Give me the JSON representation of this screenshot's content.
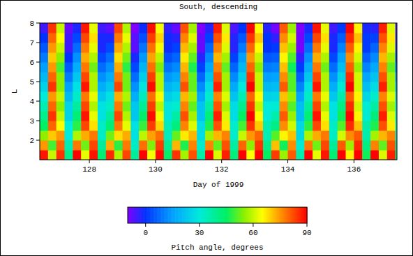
{
  "chart_data": {
    "type": "heatmap",
    "title": "South, descending",
    "x_label": "Day of 1999",
    "y_label": "L",
    "xlim": [
      126.5,
      137.3
    ],
    "ylim": [
      1,
      8
    ],
    "xticks": [
      128,
      130,
      132,
      134,
      136
    ],
    "yticks": [
      2,
      3,
      4,
      5,
      6,
      7,
      8
    ],
    "colorbar_label": "Pitch angle, degrees",
    "colorbar_range": [
      -10,
      90
    ],
    "colorbar_ticks": [
      0,
      30,
      60,
      90
    ],
    "x": [
      126.625,
      126.875,
      127.125,
      127.375,
      127.625,
      127.875,
      128.125,
      128.375,
      128.625,
      128.875,
      129.125,
      129.375,
      129.625,
      129.875,
      130.125,
      130.375,
      130.625,
      130.875,
      131.125,
      131.375,
      131.625,
      131.875,
      132.125,
      132.375,
      132.625,
      132.875,
      133.125,
      133.375,
      133.625,
      133.875,
      134.125,
      134.375,
      134.625,
      134.875,
      135.125,
      135.375,
      135.625,
      135.875,
      136.125,
      136.375,
      136.625,
      136.875,
      137.125,
      137.375
    ],
    "y": [
      1.25,
      1.75,
      2.25,
      2.75,
      3.25,
      3.75,
      4.25,
      4.75,
      5.25,
      5.75,
      6.25,
      6.75,
      7.25,
      7.75
    ],
    "values": [
      [
        88,
        60,
        85,
        40,
        90,
        63,
        88,
        43,
        86,
        58,
        83,
        38,
        90,
        64,
        89,
        44,
        85,
        57,
        82,
        37,
        90,
        62,
        87,
        42,
        90,
        65,
        90,
        45,
        84,
        56,
        81,
        36,
        90,
        63,
        88,
        43,
        90,
        66,
        90,
        46,
        90,
        62,
        87,
        42
      ],
      [
        75,
        50,
        80,
        35,
        78,
        53,
        83,
        38,
        73,
        48,
        78,
        33,
        79,
        54,
        84,
        39,
        72,
        47,
        77,
        32,
        77,
        52,
        82,
        37,
        80,
        55,
        85,
        40,
        71,
        46,
        76,
        31,
        78,
        53,
        83,
        38,
        81,
        56,
        86,
        41,
        77,
        52,
        82,
        37
      ],
      [
        55,
        70,
        75,
        30,
        58,
        73,
        78,
        33,
        53,
        68,
        73,
        28,
        59,
        74,
        79,
        34,
        52,
        67,
        72,
        27,
        57,
        72,
        77,
        32,
        60,
        75,
        80,
        35,
        51,
        66,
        71,
        26,
        58,
        73,
        78,
        33,
        61,
        76,
        81,
        36,
        57,
        72,
        77,
        32
      ],
      [
        45,
        80,
        65,
        30,
        48,
        83,
        68,
        33,
        43,
        78,
        63,
        28,
        49,
        84,
        69,
        34,
        42,
        77,
        62,
        27,
        47,
        82,
        67,
        32,
        50,
        85,
        70,
        35,
        41,
        76,
        61,
        26,
        48,
        83,
        68,
        33,
        51,
        86,
        71,
        36,
        47,
        82,
        67,
        32
      ],
      [
        40,
        85,
        60,
        25,
        43,
        88,
        63,
        28,
        38,
        83,
        58,
        23,
        44,
        89,
        64,
        29,
        37,
        82,
        57,
        22,
        42,
        87,
        62,
        27,
        45,
        90,
        65,
        30,
        36,
        81,
        56,
        21,
        43,
        88,
        63,
        28,
        46,
        90,
        66,
        31,
        42,
        87,
        62,
        27
      ],
      [
        35,
        80,
        55,
        25,
        38,
        83,
        58,
        28,
        33,
        78,
        53,
        23,
        39,
        84,
        59,
        29,
        32,
        77,
        52,
        22,
        37,
        82,
        57,
        27,
        40,
        85,
        60,
        30,
        31,
        76,
        51,
        21,
        38,
        83,
        58,
        28,
        41,
        86,
        61,
        31,
        37,
        82,
        57,
        27
      ],
      [
        30,
        75,
        60,
        20,
        33,
        78,
        63,
        23,
        28,
        73,
        58,
        18,
        34,
        79,
        64,
        24,
        27,
        72,
        57,
        17,
        32,
        77,
        62,
        22,
        35,
        80,
        65,
        25,
        26,
        71,
        56,
        16,
        33,
        78,
        63,
        23,
        36,
        81,
        66,
        26,
        32,
        77,
        62,
        22
      ],
      [
        25,
        85,
        55,
        15,
        28,
        88,
        58,
        18,
        23,
        83,
        53,
        13,
        29,
        89,
        59,
        19,
        22,
        82,
        52,
        12,
        27,
        87,
        57,
        17,
        30,
        90,
        60,
        20,
        21,
        81,
        51,
        11,
        28,
        88,
        58,
        18,
        31,
        90,
        61,
        21,
        27,
        87,
        57,
        17
      ],
      [
        20,
        80,
        55,
        10,
        23,
        83,
        58,
        13,
        18,
        78,
        53,
        8,
        24,
        84,
        59,
        14,
        17,
        77,
        52,
        7,
        22,
        82,
        57,
        12,
        25,
        85,
        60,
        15,
        16,
        76,
        51,
        6,
        23,
        83,
        58,
        13,
        26,
        86,
        61,
        16,
        22,
        82,
        57,
        12
      ],
      [
        15,
        75,
        50,
        5,
        18,
        78,
        53,
        8,
        13,
        73,
        48,
        3,
        19,
        79,
        54,
        9,
        12,
        72,
        47,
        2,
        17,
        77,
        52,
        7,
        20,
        80,
        55,
        10,
        11,
        71,
        46,
        1,
        18,
        78,
        53,
        8,
        21,
        81,
        56,
        11,
        17,
        77,
        52,
        7
      ],
      [
        10,
        70,
        55,
        0,
        13,
        73,
        58,
        3,
        8,
        68,
        53,
        -2,
        14,
        74,
        59,
        4,
        7,
        67,
        52,
        -3,
        12,
        72,
        57,
        2,
        15,
        75,
        60,
        5,
        6,
        66,
        51,
        -4,
        13,
        73,
        58,
        3,
        16,
        76,
        61,
        6,
        12,
        72,
        57,
        2
      ],
      [
        5,
        75,
        60,
        -5,
        8,
        78,
        63,
        -2,
        3,
        73,
        58,
        -7,
        9,
        79,
        64,
        -1,
        2,
        72,
        57,
        -8,
        7,
        77,
        62,
        -3,
        10,
        80,
        65,
        0,
        1,
        71,
        56,
        -9,
        8,
        78,
        63,
        -2,
        11,
        81,
        66,
        1,
        7,
        77,
        62,
        -3
      ],
      [
        0,
        80,
        65,
        -5,
        3,
        83,
        68,
        -2,
        -2,
        78,
        63,
        -7,
        4,
        84,
        69,
        -1,
        -3,
        77,
        62,
        -8,
        2,
        82,
        67,
        -3,
        5,
        85,
        70,
        0,
        -4,
        76,
        61,
        -9,
        3,
        83,
        68,
        -2,
        6,
        86,
        71,
        1,
        2,
        82,
        67,
        -3
      ],
      [
        -5,
        85,
        60,
        -8,
        -2,
        88,
        63,
        -5,
        -7,
        83,
        58,
        -10,
        -1,
        89,
        64,
        -4,
        -8,
        82,
        57,
        -10,
        -3,
        87,
        62,
        -6,
        0,
        90,
        65,
        -3,
        -9,
        81,
        56,
        -10,
        -2,
        88,
        63,
        -5,
        1,
        90,
        66,
        -2,
        -3,
        87,
        62,
        -6
      ]
    ]
  }
}
